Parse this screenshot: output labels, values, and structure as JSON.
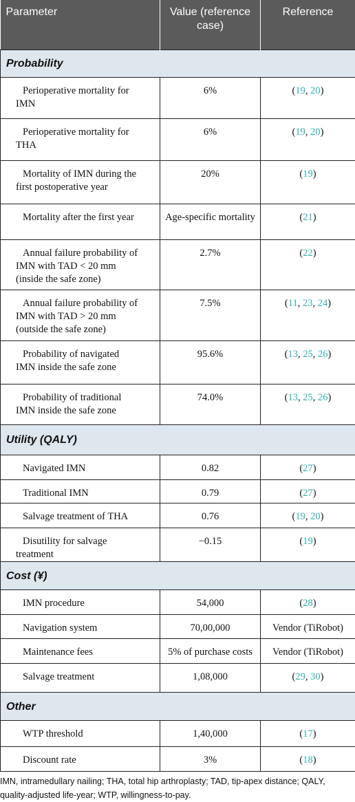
{
  "table": {
    "header": [
      "Parameter",
      "Value (reference case)",
      "Reference"
    ],
    "sections": [
      {
        "title": "Probability",
        "rows": [
          {
            "parameter": "Perioperative mortality for IMN",
            "value": "6%",
            "reference": [
              "(",
              "19",
              ", ",
              "20",
              ")"
            ]
          },
          {
            "parameter": "Perioperative mortality for THA",
            "value": "6%",
            "reference": [
              "(",
              "19",
              ", ",
              "20",
              ")"
            ]
          },
          {
            "parameter": "Mortality of IMN during the first postoperative year",
            "value": "20%",
            "reference": [
              "(",
              "19",
              ")"
            ]
          },
          {
            "parameter": "Mortality after the first year",
            "value": "Age-specific mortality",
            "reference": [
              "(",
              "21",
              ")"
            ]
          },
          {
            "parameter": "Annual failure probability of IMN with TAD < 20 mm (inside the safe zone)",
            "value": "2.7%",
            "reference": [
              "(",
              "22",
              ")"
            ]
          },
          {
            "parameter": "Annual failure probability of IMN with TAD > 20 mm (outside the safe zone)",
            "value": "7.5%",
            "reference": [
              "(",
              "11",
              ", ",
              "23",
              ", ",
              "24",
              ")"
            ]
          },
          {
            "parameter": "Probability of navigated IMN inside the safe zone",
            "value": "95.6%",
            "reference": [
              "(",
              "13",
              ", ",
              "25",
              ", ",
              "26",
              ")"
            ]
          },
          {
            "parameter": "Probability of traditional IMN inside the safe zone",
            "value": "74.0%",
            "reference": [
              "(",
              "13",
              ", ",
              "25",
              ", ",
              "26",
              ")"
            ]
          }
        ]
      },
      {
        "title": "Utility (QALY)",
        "rows": [
          {
            "parameter": "Navigated IMN",
            "value": "0.82",
            "reference": [
              "(",
              "27",
              ")"
            ]
          },
          {
            "parameter": "Traditional IMN",
            "value": "0.79",
            "reference": [
              "(",
              "27",
              ")"
            ]
          },
          {
            "parameter": "Salvage treatment of THA",
            "value": "0.76",
            "reference": [
              "(",
              "19",
              ", ",
              "20",
              ")"
            ]
          },
          {
            "parameter": "Disutility for salvage treatment",
            "value": "−0.15",
            "reference": [
              "(",
              "19",
              ")"
            ]
          }
        ]
      },
      {
        "title": "Cost (¥)",
        "rows": [
          {
            "parameter": "IMN procedure",
            "value": "54,000",
            "reference": [
              "(",
              "28",
              ")"
            ]
          },
          {
            "parameter": "Navigation system",
            "value": "70,00,000",
            "reference": [
              "Vendor (TiRobot)"
            ]
          },
          {
            "parameter": "Maintenance fees",
            "value": "5% of purchase costs",
            "reference": [
              "Vendor (TiRobot)"
            ]
          },
          {
            "parameter": "Salvage treatment",
            "value": "1,08,000",
            "reference": [
              "(",
              "29",
              ", ",
              "30",
              ")"
            ]
          }
        ]
      },
      {
        "title": "Other",
        "rows": [
          {
            "parameter": "WTP threshold",
            "value": "1,40,000",
            "reference": [
              "(",
              "17",
              ")"
            ]
          },
          {
            "parameter": "Discount rate",
            "value": "3%",
            "reference": [
              "(",
              "18",
              ")"
            ]
          }
        ]
      }
    ],
    "footnote": "IMN, intramedullary nailing; THA, total hip arthroplasty; TAD, tip-apex distance; QALY, quality-adjusted life-year; WTP, willingness-to-pay."
  }
}
